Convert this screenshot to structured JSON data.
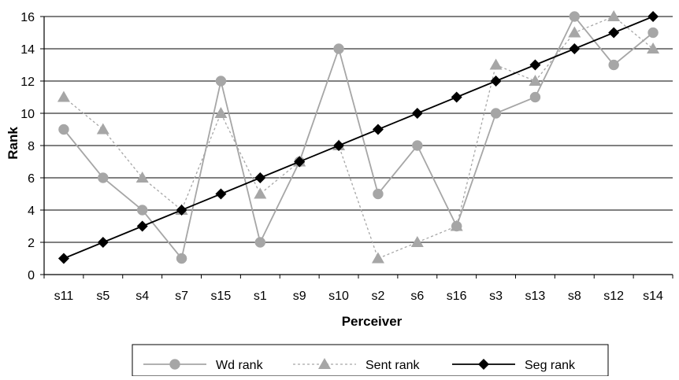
{
  "chart_data": {
    "type": "line",
    "xlabel": "Perceiver",
    "ylabel": "Rank",
    "ylim": [
      0,
      16
    ],
    "yticks": [
      0,
      2,
      4,
      6,
      8,
      10,
      12,
      14,
      16
    ],
    "grid": true,
    "legend_position": "bottom",
    "categories": [
      "s11",
      "s5",
      "s4",
      "s7",
      "s15",
      "s1",
      "s9",
      "s10",
      "s2",
      "s6",
      "s16",
      "s3",
      "s13",
      "s8",
      "s12",
      "s14"
    ],
    "series": [
      {
        "name": "Wd rank",
        "values": [
          9,
          6,
          4,
          1,
          12,
          2,
          7,
          14,
          5,
          8,
          3,
          10,
          11,
          16,
          13,
          15
        ],
        "color": "#a6a6a6",
        "marker": "circle",
        "line": "solid"
      },
      {
        "name": "Sent rank",
        "values": [
          11,
          9,
          6,
          4,
          10,
          5,
          7,
          8,
          1,
          2,
          3,
          13,
          12,
          15,
          16,
          14
        ],
        "color": "#a6a6a6",
        "marker": "triangle",
        "line": "dotted"
      },
      {
        "name": "Seg rank",
        "values": [
          1,
          2,
          3,
          4,
          5,
          6,
          7,
          8,
          9,
          10,
          11,
          12,
          13,
          14,
          15,
          16
        ],
        "color": "#000000",
        "marker": "diamond",
        "line": "solid"
      }
    ]
  }
}
